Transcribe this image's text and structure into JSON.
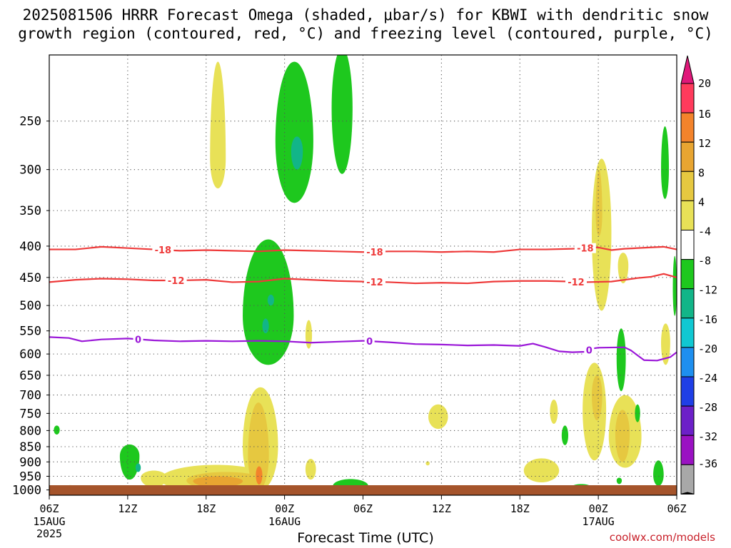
{
  "title": {
    "line1": "2025081506 HRRR Forecast Omega (shaded, μbar/s) for KBWI with dendritic snow",
    "line2": "growth region (contoured, red, °C) and freezing level (contoured, purple, °C)"
  },
  "credit": "coolwx.com/models",
  "chart_data": {
    "type": "heatmap",
    "x_label": "Forecast Time (UTC)",
    "x_range_hours": [
      0,
      48
    ],
    "x_ticks": [
      {
        "h": 0,
        "label": "06Z",
        "sub": [
          "15AUG",
          "2025"
        ]
      },
      {
        "h": 6,
        "label": "12Z"
      },
      {
        "h": 12,
        "label": "18Z"
      },
      {
        "h": 18,
        "label": "00Z",
        "sub": [
          "16AUG"
        ]
      },
      {
        "h": 24,
        "label": "06Z"
      },
      {
        "h": 30,
        "label": "12Z"
      },
      {
        "h": 36,
        "label": "18Z"
      },
      {
        "h": 42,
        "label": "00Z",
        "sub": [
          "17AUG"
        ]
      },
      {
        "h": 48,
        "label": "06Z"
      }
    ],
    "y_label": "",
    "y_axis": "pressure (hPa), log scale, inverted",
    "y_range": [
      1020,
      195
    ],
    "y_ticks": [
      250,
      300,
      350,
      400,
      450,
      500,
      550,
      600,
      650,
      700,
      750,
      800,
      850,
      900,
      950,
      1000
    ],
    "grid": "dotted",
    "colorbar": {
      "ticks": [
        "20",
        "16",
        "12",
        "8",
        "4",
        "-4",
        "-8",
        "-12",
        "-16",
        "-20",
        "-24",
        "-28",
        "-32",
        "-36"
      ],
      "colors": [
        "#ff3b5c",
        "#f3832b",
        "#e8a531",
        "#e6c840",
        "#e8e157",
        "#ffffff",
        "#1ec81e",
        "#12b588",
        "#10c8d2",
        "#1e8fef",
        "#1f3fe6",
        "#6c20c8",
        "#9a12c2",
        "#a8a8a8"
      ],
      "top_arrow": "#e0187a",
      "bottom_arrow": "#000000"
    },
    "contours": [
      {
        "name": "dgz_-18",
        "color": "#ee3a3a",
        "label": "-18",
        "label_at_hours": [
          8.7,
          24.9,
          41
        ],
        "points": [
          [
            0,
            405
          ],
          [
            2,
            405
          ],
          [
            4,
            401
          ],
          [
            6,
            403
          ],
          [
            8,
            405
          ],
          [
            10,
            407
          ],
          [
            12,
            406
          ],
          [
            14,
            407
          ],
          [
            16,
            408
          ],
          [
            18,
            406
          ],
          [
            20,
            407
          ],
          [
            22,
            408
          ],
          [
            24,
            409
          ],
          [
            26,
            408
          ],
          [
            28,
            408
          ],
          [
            30,
            409
          ],
          [
            32,
            408
          ],
          [
            34,
            409
          ],
          [
            36,
            405
          ],
          [
            38,
            405
          ],
          [
            40,
            404
          ],
          [
            42,
            402
          ],
          [
            43,
            406
          ],
          [
            44,
            404
          ],
          [
            46,
            402
          ],
          [
            47,
            401
          ],
          [
            48,
            405
          ]
        ]
      },
      {
        "name": "dgz_-12",
        "color": "#ee3a3a",
        "label": "-12",
        "label_at_hours": [
          9.7,
          24.9,
          40.3
        ],
        "points": [
          [
            0,
            458
          ],
          [
            2,
            454
          ],
          [
            4,
            452
          ],
          [
            6,
            453
          ],
          [
            8,
            455
          ],
          [
            10,
            455
          ],
          [
            12,
            454
          ],
          [
            14,
            458
          ],
          [
            16,
            457
          ],
          [
            18,
            452
          ],
          [
            20,
            454
          ],
          [
            22,
            456
          ],
          [
            24,
            457
          ],
          [
            26,
            458
          ],
          [
            28,
            460
          ],
          [
            30,
            459
          ],
          [
            32,
            460
          ],
          [
            34,
            457
          ],
          [
            36,
            456
          ],
          [
            38,
            456
          ],
          [
            40,
            457
          ],
          [
            41,
            458
          ],
          [
            43,
            457
          ],
          [
            45,
            451
          ],
          [
            46,
            449
          ],
          [
            47,
            444
          ],
          [
            48,
            450
          ]
        ]
      },
      {
        "name": "freezing_level_0",
        "color": "#9a16d8",
        "label": "0",
        "label_at_hours": [
          6.8,
          24.5,
          41.3
        ],
        "points": [
          [
            0,
            563
          ],
          [
            1.5,
            565
          ],
          [
            2.5,
            572
          ],
          [
            4,
            568
          ],
          [
            6,
            566
          ],
          [
            8,
            570
          ],
          [
            10,
            572
          ],
          [
            12,
            571
          ],
          [
            14,
            572
          ],
          [
            16,
            571
          ],
          [
            18,
            572
          ],
          [
            20,
            575
          ],
          [
            22,
            573
          ],
          [
            24,
            571
          ],
          [
            26,
            574
          ],
          [
            28,
            578
          ],
          [
            30,
            579
          ],
          [
            32,
            581
          ],
          [
            34,
            580
          ],
          [
            36,
            582
          ],
          [
            37,
            577
          ],
          [
            38,
            585
          ],
          [
            39,
            594
          ],
          [
            40,
            596
          ],
          [
            41,
            595
          ],
          [
            41.5,
            588
          ],
          [
            42,
            586
          ],
          [
            44,
            585
          ],
          [
            44.5,
            592
          ],
          [
            45,
            603
          ],
          [
            45.5,
            614
          ],
          [
            46.5,
            615
          ],
          [
            47.5,
            607
          ],
          [
            48,
            596
          ]
        ]
      }
    ],
    "omega_regions": [
      {
        "level": 4,
        "t": [
          12.3,
          13.5
        ],
        "p": [
          200,
          322
        ],
        "peak_p": 288
      },
      {
        "level": -4,
        "t": [
          17.3,
          20.2
        ],
        "p": [
          200,
          340
        ],
        "peak_p": 270
      },
      {
        "level": -8,
        "t": [
          18.5,
          19.4
        ],
        "p": [
          265,
          300
        ],
        "peak_p": 280
      },
      {
        "level": -4,
        "t": [
          21.6,
          23.2
        ],
        "p": [
          190,
          305
        ],
        "peak_p": 238
      },
      {
        "level": -4,
        "t": [
          14.8,
          18.7
        ],
        "p": [
          390,
          625
        ],
        "peak_p": 520
      },
      {
        "level": -8,
        "t": [
          16.7,
          17.2
        ],
        "p": [
          480,
          500
        ],
        "peak_p": 490
      },
      {
        "level": -8,
        "t": [
          16.3,
          16.8
        ],
        "p": [
          525,
          555
        ],
        "peak_p": 540
      },
      {
        "level": 4,
        "t": [
          19.6,
          20.1
        ],
        "p": [
          528,
          588
        ],
        "peak_p": 560
      },
      {
        "level": 4,
        "t": [
          1.0,
          2.2
        ],
        "p": [
          982,
          1015
        ],
        "peak_p": 1005
      },
      {
        "level": -4,
        "t": [
          0.35,
          0.8
        ],
        "p": [
          785,
          812
        ],
        "peak_p": 798
      },
      {
        "level": -4,
        "t": [
          5.4,
          6.9
        ],
        "p": [
          843,
          962
        ],
        "peak_p": 880
      },
      {
        "level": -8,
        "t": [
          6.6,
          7.0
        ],
        "p": [
          905,
          935
        ],
        "peak_p": 920
      },
      {
        "level": 4,
        "t": [
          7.0,
          9.0
        ],
        "p": [
          930,
          990
        ],
        "peak_p": 955
      },
      {
        "level": 4,
        "t": [
          8.5,
          17.0
        ],
        "p": [
          910,
          1012
        ],
        "peak_p": 960
      },
      {
        "level": 4,
        "t": [
          14.8,
          17.5
        ],
        "p": [
          680,
          1000
        ],
        "peak_p": 850
      },
      {
        "level": 8,
        "t": [
          10.5,
          16.5
        ],
        "p": [
          935,
          1000
        ],
        "peak_p": 965
      },
      {
        "level": 8,
        "t": [
          15.2,
          16.8
        ],
        "p": [
          720,
          1000
        ],
        "peak_p": 880
      },
      {
        "level": 12,
        "t": [
          11.0,
          14.8
        ],
        "p": [
          950,
          990
        ],
        "peak_p": 967
      },
      {
        "level": 16,
        "t": [
          15.8,
          16.3
        ],
        "p": [
          915,
          980
        ],
        "peak_p": 945
      },
      {
        "level": 4,
        "t": [
          19.6,
          20.4
        ],
        "p": [
          890,
          962
        ],
        "peak_p": 925
      },
      {
        "level": 4,
        "t": [
          29.0,
          30.5
        ],
        "p": [
          725,
          795
        ],
        "peak_p": 760
      },
      {
        "level": 4,
        "t": [
          28.8,
          29.1
        ],
        "p": [
          898,
          912
        ],
        "peak_p": 905
      },
      {
        "level": -4,
        "t": [
          21.7,
          24.4
        ],
        "p": [
          960,
          1015
        ],
        "peak_p": 985
      },
      {
        "level": 4,
        "t": [
          36.3,
          39.0
        ],
        "p": [
          888,
          972
        ],
        "peak_p": 930
      },
      {
        "level": 4,
        "t": [
          38.3,
          38.9
        ],
        "p": [
          712,
          780
        ],
        "peak_p": 745
      },
      {
        "level": -4,
        "t": [
          39.2,
          39.7
        ],
        "p": [
          785,
          845
        ],
        "peak_p": 815
      },
      {
        "level": -4,
        "t": [
          39.8,
          41.6
        ],
        "p": [
          978,
          1015
        ],
        "peak_p": 995
      },
      {
        "level": 4,
        "t": [
          41.5,
          43.0
        ],
        "p": [
          288,
          510
        ],
        "peak_p": 380
      },
      {
        "level": 8,
        "t": [
          41.8,
          42.3
        ],
        "p": [
          300,
          385
        ],
        "peak_p": 355
      },
      {
        "level": 4,
        "t": [
          43.5,
          44.3
        ],
        "p": [
          410,
          460
        ],
        "peak_p": 430
      },
      {
        "level": 4,
        "t": [
          40.8,
          42.6
        ],
        "p": [
          620,
          895
        ],
        "peak_p": 740
      },
      {
        "level": 8,
        "t": [
          41.5,
          42.3
        ],
        "p": [
          650,
          770
        ],
        "peak_p": 700
      },
      {
        "level": 4,
        "t": [
          42.8,
          45.3
        ],
        "p": [
          700,
          920
        ],
        "peak_p": 820
      },
      {
        "level": 8,
        "t": [
          43.3,
          44.4
        ],
        "p": [
          740,
          900
        ],
        "peak_p": 810
      },
      {
        "level": -4,
        "t": [
          43.4,
          44.1
        ],
        "p": [
          545,
          690
        ],
        "peak_p": 610
      },
      {
        "level": -4,
        "t": [
          43.4,
          43.8
        ],
        "p": [
          955,
          978
        ],
        "peak_p": 965
      },
      {
        "level": -4,
        "t": [
          44.8,
          45.2
        ],
        "p": [
          725,
          775
        ],
        "peak_p": 750
      },
      {
        "level": -4,
        "t": [
          46.2,
          47.0
        ],
        "p": [
          895,
          985
        ],
        "peak_p": 945
      },
      {
        "level": -4,
        "t": [
          46.8,
          47.4
        ],
        "p": [
          255,
          335
        ],
        "peak_p": 300
      },
      {
        "level": 4,
        "t": [
          46.8,
          47.5
        ],
        "p": [
          535,
          625
        ],
        "peak_p": 575
      },
      {
        "level": -4,
        "t": [
          47.7,
          48.0
        ],
        "p": [
          415,
          520
        ],
        "peak_p": 470
      }
    ],
    "terrain_color": "#a5542b"
  }
}
